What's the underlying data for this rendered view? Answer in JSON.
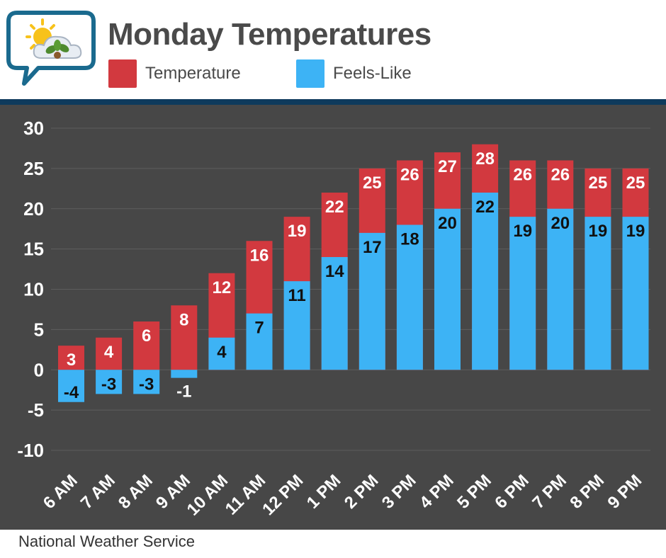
{
  "header": {
    "title": "Monday Temperatures",
    "logo_icon": "weather-bubble-icon"
  },
  "legend": [
    {
      "label": "Temperature",
      "color": "#d2393f"
    },
    {
      "label": "Feels-Like",
      "color": "#3db3f5"
    }
  ],
  "footer": {
    "source": "National Weather Service"
  },
  "colors": {
    "background": "#474747",
    "header_bg": "#ffffff",
    "divider": "#0e3a5c",
    "gridline": "#5e5e5e",
    "axis_text": "#ffffff"
  },
  "chart_data": {
    "type": "bar",
    "title": "Monday Temperatures",
    "xlabel": "",
    "ylabel": "",
    "categories": [
      "6 AM",
      "7 AM",
      "8 AM",
      "9 AM",
      "10 AM",
      "11 AM",
      "12 PM",
      "1 PM",
      "2 PM",
      "3 PM",
      "4 PM",
      "5 PM",
      "6 PM",
      "7 PM",
      "8 PM",
      "9 PM"
    ],
    "series": [
      {
        "name": "Temperature",
        "color": "#d2393f",
        "values": [
          3,
          4,
          6,
          8,
          12,
          16,
          19,
          22,
          25,
          26,
          27,
          28,
          26,
          26,
          25,
          25
        ]
      },
      {
        "name": "Feels-Like",
        "color": "#3db3f5",
        "values": [
          -4,
          -3,
          -3,
          -1,
          4,
          7,
          11,
          14,
          17,
          18,
          20,
          22,
          19,
          20,
          19,
          19
        ]
      }
    ],
    "ylim": [
      -10,
      30
    ],
    "yticks": [
      30,
      25,
      20,
      15,
      10,
      5,
      0,
      -5,
      -10
    ],
    "grid": true,
    "legend_position": "top"
  }
}
